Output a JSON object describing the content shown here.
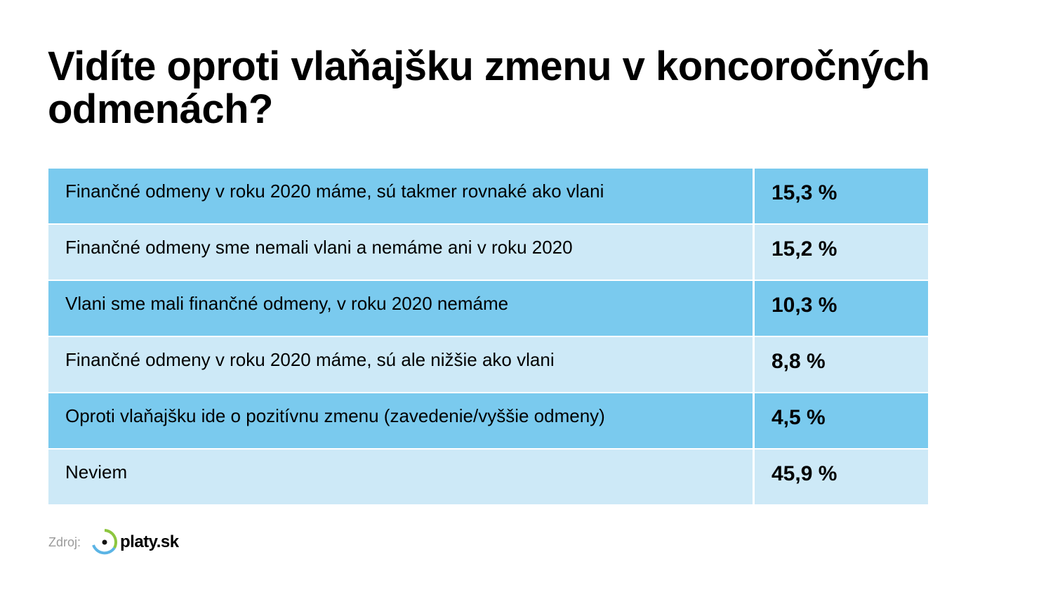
{
  "title": "Vidíte oproti vlaňajšku zmenu v koncoročných odmenách?",
  "colors": {
    "row_dark": "#7ACAEE",
    "row_light": "#CDE9F7",
    "logo_green": "#8DC63F",
    "logo_blue": "#5BB4E5"
  },
  "rows": [
    {
      "label": "Finančné odmeny v roku 2020 máme, sú takmer rovnaké ako vlani",
      "value": "15,3 %"
    },
    {
      "label": "Finančné odmeny sme nemali vlani a nemáme ani v roku 2020",
      "value": "15,2 %"
    },
    {
      "label": "Vlani sme mali finančné odmeny, v roku 2020 nemáme",
      "value": "10,3 %"
    },
    {
      "label": "Finančné odmeny v roku 2020 máme, sú ale nižšie ako vlani",
      "value": "8,8 %"
    },
    {
      "label": "Oproti vlaňajšku ide o pozitívnu zmenu (zavedenie/vyššie odmeny)",
      "value": "4,5 %"
    },
    {
      "label": "Neviem",
      "value": "45,9 %"
    }
  ],
  "source": {
    "label": "Zdroj:",
    "logo_text": "platy.sk"
  }
}
